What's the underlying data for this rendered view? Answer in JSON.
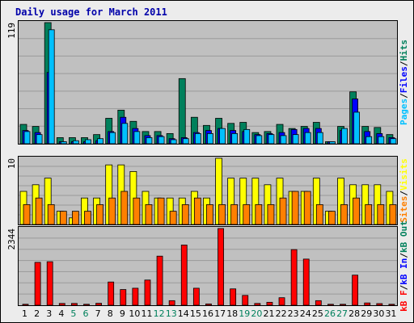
{
  "page": {
    "title": "Daily usage for March 2011"
  },
  "colors": {
    "hits": "#00805c",
    "files": "#0000ff",
    "pages": "#00c0ff",
    "visits": "#ffff00",
    "sites": "#ff8000",
    "kb_f": "#ff0000",
    "kb_in": "#0000ff",
    "kb_out": "#00805c",
    "panel_bg": "#c0c0c0",
    "grid": "#9a9a9a",
    "weekend_day": "#00805c",
    "weekday_day": "#000000"
  },
  "chart_data": [
    {
      "type": "bar",
      "panel": "top",
      "y_max_label": "119",
      "ylim": [
        0,
        119
      ],
      "grid": true,
      "legend": {
        "position": "right",
        "entries": [
          {
            "label": "Pages",
            "color_key": "pages"
          },
          {
            "label": "/",
            "color_key": "weekday_day"
          },
          {
            "label": "Files",
            "color_key": "files"
          },
          {
            "label": "/",
            "color_key": "weekday_day"
          },
          {
            "label": "Hits",
            "color_key": "hits"
          }
        ]
      },
      "categories": [
        "1",
        "2",
        "3",
        "4",
        "5",
        "6",
        "7",
        "8",
        "9",
        "10",
        "11",
        "12",
        "13",
        "14",
        "15",
        "16",
        "17",
        "18",
        "19",
        "20",
        "21",
        "22",
        "23",
        "24",
        "25",
        "26",
        "27",
        "28",
        "29",
        "30",
        "31"
      ],
      "series": [
        {
          "name": "Hits",
          "color_key": "hits",
          "values": [
            19,
            17,
            119,
            6,
            6,
            6,
            9,
            25,
            33,
            22,
            12,
            12,
            10,
            64,
            26,
            18,
            25,
            20,
            21,
            11,
            12,
            19,
            15,
            17,
            21,
            2,
            17,
            51,
            17,
            16,
            9
          ]
        },
        {
          "name": "Files",
          "color_key": "files",
          "values": [
            13,
            11,
            70,
            2,
            2,
            2,
            3,
            12,
            26,
            15,
            8,
            8,
            5,
            6,
            11,
            13,
            15,
            13,
            12,
            9,
            10,
            11,
            14,
            15,
            15,
            2,
            13,
            44,
            12,
            10,
            6
          ]
        },
        {
          "name": "Pages",
          "color_key": "pages",
          "values": [
            12,
            9,
            112,
            2,
            3,
            4,
            5,
            11,
            20,
            12,
            6,
            7,
            4,
            5,
            10,
            10,
            15,
            10,
            14,
            8,
            9,
            8,
            9,
            11,
            11,
            2,
            15,
            31,
            7,
            7,
            5
          ]
        }
      ]
    },
    {
      "type": "bar",
      "panel": "middle",
      "y_max_label": "10",
      "ylim": [
        0,
        10
      ],
      "grid": true,
      "legend": {
        "position": "right",
        "entries": [
          {
            "label": "Sites",
            "color_key": "sites"
          },
          {
            "label": "/",
            "color_key": "weekday_day"
          },
          {
            "label": "Visits",
            "color_key": "visits"
          }
        ]
      },
      "categories": [
        "1",
        "2",
        "3",
        "4",
        "5",
        "6",
        "7",
        "8",
        "9",
        "10",
        "11",
        "12",
        "13",
        "14",
        "15",
        "16",
        "17",
        "18",
        "19",
        "20",
        "21",
        "22",
        "23",
        "24",
        "25",
        "26",
        "27",
        "28",
        "29",
        "30",
        "31"
      ],
      "series": [
        {
          "name": "Visits",
          "color_key": "visits",
          "values": [
            5,
            6,
            7,
            2,
            1,
            4,
            4,
            9,
            9,
            8,
            5,
            4,
            4,
            4,
            5,
            4,
            10,
            7,
            7,
            7,
            6,
            7,
            5,
            5,
            7,
            2,
            7,
            6,
            6,
            6,
            5
          ]
        },
        {
          "name": "Sites",
          "color_key": "sites",
          "values": [
            3,
            4,
            3,
            2,
            2,
            2,
            3,
            4,
            5,
            4,
            3,
            4,
            2,
            3,
            4,
            3,
            3,
            3,
            3,
            3,
            3,
            4,
            5,
            5,
            3,
            2,
            3,
            4,
            3,
            3,
            3
          ]
        }
      ]
    },
    {
      "type": "bar",
      "panel": "bottom",
      "y_max_label": "2344",
      "ylim": [
        0,
        2344
      ],
      "grid": true,
      "legend": {
        "position": "right",
        "entries": [
          {
            "label": "kB F",
            "color_key": "kb_f"
          },
          {
            "label": "/",
            "color_key": "weekday_day"
          },
          {
            "label": "kB In",
            "color_key": "kb_in"
          },
          {
            "label": "/",
            "color_key": "weekday_day"
          },
          {
            "label": "kB Out",
            "color_key": "kb_out"
          }
        ]
      },
      "categories": [
        "1",
        "2",
        "3",
        "4",
        "5",
        "6",
        "7",
        "8",
        "9",
        "10",
        "11",
        "12",
        "13",
        "14",
        "15",
        "16",
        "17",
        "18",
        "19",
        "20",
        "21",
        "22",
        "23",
        "24",
        "25",
        "26",
        "27",
        "28",
        "29",
        "30",
        "31"
      ],
      "series": [
        {
          "name": "kB F",
          "color_key": "kb_f",
          "values": [
            30,
            1310,
            1330,
            55,
            55,
            30,
            60,
            710,
            480,
            520,
            770,
            1500,
            140,
            1840,
            520,
            40,
            2344,
            500,
            300,
            55,
            90,
            230,
            1700,
            1410,
            140,
            30,
            30,
            920,
            70,
            50,
            30
          ]
        }
      ]
    }
  ],
  "x_axis": {
    "labels": [
      "1",
      "2",
      "3",
      "4",
      "5",
      "6",
      "7",
      "8",
      "9",
      "10",
      "11",
      "12",
      "13",
      "14",
      "15",
      "16",
      "17",
      "18",
      "19",
      "20",
      "21",
      "22",
      "23",
      "24",
      "25",
      "26",
      "27",
      "28",
      "29",
      "30",
      "31"
    ],
    "weekend_days": [
      "5",
      "6",
      "12",
      "13",
      "19",
      "20",
      "26",
      "27"
    ]
  }
}
